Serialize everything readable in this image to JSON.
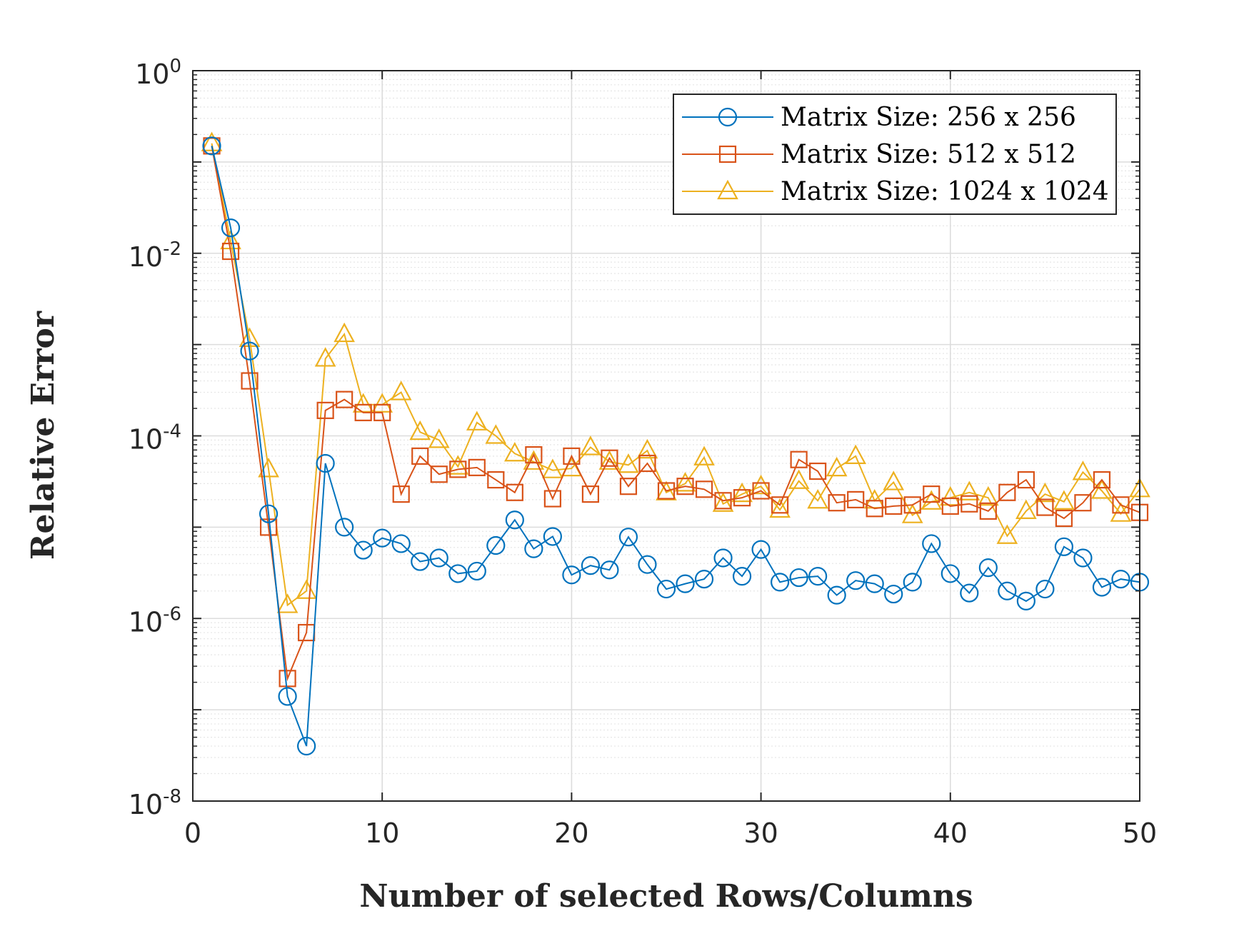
{
  "chart_data": {
    "type": "line",
    "title": "",
    "xlabel": "Number of selected Rows/Columns",
    "ylabel": "Relative Error",
    "xscale": "linear",
    "yscale": "log",
    "xlim": [
      0,
      50
    ],
    "ylim": [
      1e-08,
      1
    ],
    "xticks": [
      0,
      10,
      20,
      30,
      40,
      50
    ],
    "xtick_labels": [
      "0",
      "10",
      "20",
      "30",
      "40",
      "50"
    ],
    "yticks": [
      1e-08,
      1e-06,
      0.0001,
      0.01,
      1
    ],
    "ytick_labels": [
      {
        "base": "10",
        "exp": "-8"
      },
      {
        "base": "10",
        "exp": "-6"
      },
      {
        "base": "10",
        "exp": "-4"
      },
      {
        "base": "10",
        "exp": "-2"
      },
      {
        "base": "10",
        "exp": "0"
      }
    ],
    "grid": true,
    "minor_grid": true,
    "legend_position": "top-right",
    "x": [
      1,
      2,
      3,
      4,
      5,
      6,
      7,
      8,
      9,
      10,
      11,
      12,
      13,
      14,
      15,
      16,
      17,
      18,
      19,
      20,
      21,
      22,
      23,
      24,
      25,
      26,
      27,
      28,
      29,
      30,
      31,
      32,
      33,
      34,
      35,
      36,
      37,
      38,
      39,
      40,
      41,
      42,
      43,
      44,
      45,
      46,
      47,
      48,
      49,
      50
    ],
    "series": [
      {
        "name": "Matrix Size: 256 x 256",
        "color": "#0072BD",
        "marker": "circle",
        "values": [
          0.15,
          0.019,
          0.00085,
          1.4e-05,
          1.4e-07,
          4e-08,
          5e-05,
          1e-05,
          5.6e-06,
          7.6e-06,
          6.6e-06,
          4.2e-06,
          4.6e-06,
          3.1e-06,
          3.3e-06,
          6.3e-06,
          1.2e-05,
          5.8e-06,
          7.9e-06,
          3e-06,
          3.8e-06,
          3.4e-06,
          7.8e-06,
          3.9e-06,
          2.1e-06,
          2.4e-06,
          2.7e-06,
          4.6e-06,
          2.9e-06,
          5.7e-06,
          2.5e-06,
          2.8e-06,
          2.9e-06,
          1.8e-06,
          2.6e-06,
          2.4e-06,
          1.85e-06,
          2.5e-06,
          6.6e-06,
          3.1e-06,
          1.9e-06,
          3.6e-06,
          2e-06,
          1.55e-06,
          2.1e-06,
          6.1e-06,
          4.6e-06,
          2.2e-06,
          2.7e-06,
          2.5e-06
        ]
      },
      {
        "name": "Matrix Size: 512 x 512",
        "color": "#D95319",
        "marker": "square",
        "values": [
          0.15,
          0.0105,
          0.0004,
          1e-05,
          2.2e-07,
          7e-07,
          0.00019,
          0.00025,
          0.00018,
          0.00018,
          2.3e-05,
          6e-05,
          3.8e-05,
          4.3e-05,
          4.5e-05,
          3.3e-05,
          2.4e-05,
          6.2e-05,
          2.05e-05,
          6e-05,
          2.3e-05,
          5.7e-05,
          2.8e-05,
          5e-05,
          2.5e-05,
          2.8e-05,
          2.6e-05,
          1.95e-05,
          2.1e-05,
          2.5e-05,
          1.75e-05,
          5.5e-05,
          4.1e-05,
          1.85e-05,
          2e-05,
          1.6e-05,
          1.7e-05,
          1.75e-05,
          2.3e-05,
          1.7e-05,
          1.8e-05,
          1.5e-05,
          2.4e-05,
          3.3e-05,
          1.65e-05,
          1.25e-05,
          1.85e-05,
          3.3e-05,
          1.75e-05,
          1.45e-05
        ]
      },
      {
        "name": "Matrix Size: 1024 x 1024",
        "color": "#EDB120",
        "marker": "triangle",
        "values": [
          0.16,
          0.0135,
          0.00115,
          4.3e-05,
          1.4e-06,
          2e-06,
          0.0007,
          0.0013,
          0.00022,
          0.00022,
          0.0003,
          0.00011,
          9e-05,
          4.6e-05,
          0.00014,
          0.0001,
          6.4e-05,
          5.2e-05,
          4.2e-05,
          4.4e-05,
          7.5e-05,
          5.2e-05,
          4.8e-05,
          6.9e-05,
          2.4e-05,
          3e-05,
          5.8e-05,
          1.8e-05,
          2.3e-05,
          2.8e-05,
          1.55e-05,
          3.2e-05,
          1.95e-05,
          4.4e-05,
          6e-05,
          1.95e-05,
          3.1e-05,
          1.35e-05,
          1.9e-05,
          2.1e-05,
          2.4e-05,
          2.1e-05,
          8e-06,
          1.5e-05,
          2.3e-05,
          1.9e-05,
          4e-05,
          2.5e-05,
          1.4e-05,
          2.6e-05
        ]
      }
    ]
  }
}
